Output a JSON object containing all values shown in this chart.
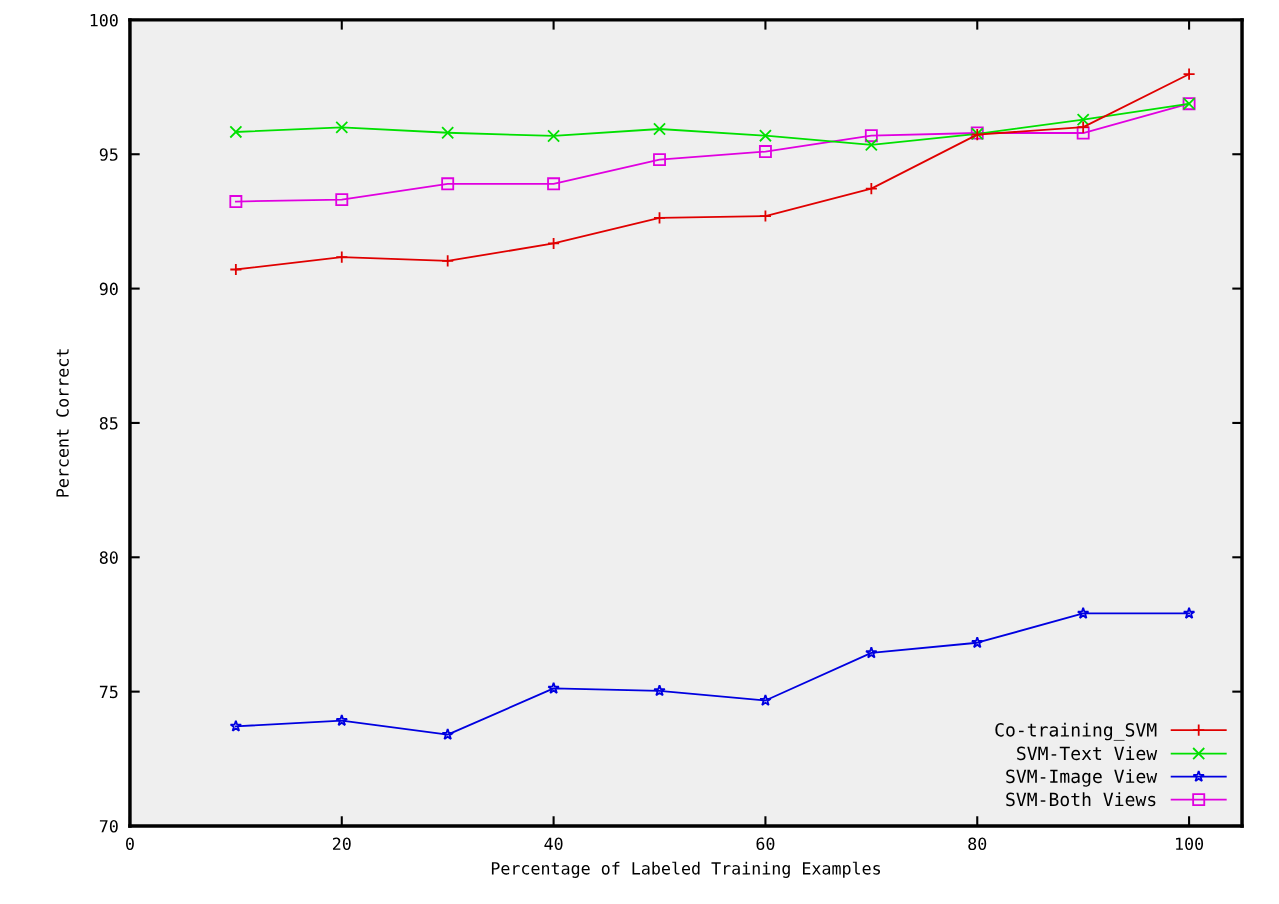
{
  "chart_data": {
    "type": "line",
    "xlabel": "Percentage of Labeled Training Examples",
    "ylabel": "Percent Correct",
    "x": [
      10,
      20,
      30,
      40,
      50,
      60,
      70,
      80,
      90,
      100
    ],
    "series": [
      {
        "name": "Co-training_SVM",
        "color": "#e00000",
        "marker": "plus",
        "values": [
          90.71,
          91.17,
          91.03,
          91.68,
          92.63,
          92.7,
          93.72,
          95.73,
          96.01,
          97.98
        ]
      },
      {
        "name": "SVM-Text View",
        "color": "#00e000",
        "marker": "cross",
        "values": [
          95.83,
          96.0,
          95.8,
          95.68,
          95.94,
          95.69,
          95.35,
          95.76,
          96.29,
          96.88
        ]
      },
      {
        "name": "SVM-Image View",
        "color": "#0000e0",
        "marker": "star",
        "values": [
          73.71,
          73.92,
          73.4,
          75.12,
          75.03,
          74.67,
          76.44,
          76.82,
          77.91,
          77.91
        ]
      },
      {
        "name": "SVM-Both Views",
        "color": "#e000e0",
        "marker": "square",
        "values": [
          93.24,
          93.31,
          93.9,
          93.9,
          94.8,
          95.1,
          95.69,
          95.79,
          95.79,
          96.88
        ]
      }
    ],
    "xlim": [
      0,
      105
    ],
    "xticks": [
      0,
      20,
      40,
      60,
      80,
      100
    ],
    "ylim": [
      70,
      100
    ],
    "yticks": [
      70,
      75,
      80,
      85,
      90,
      95,
      100
    ],
    "grid": false,
    "legend": "bottom right",
    "line_style": "solid"
  }
}
